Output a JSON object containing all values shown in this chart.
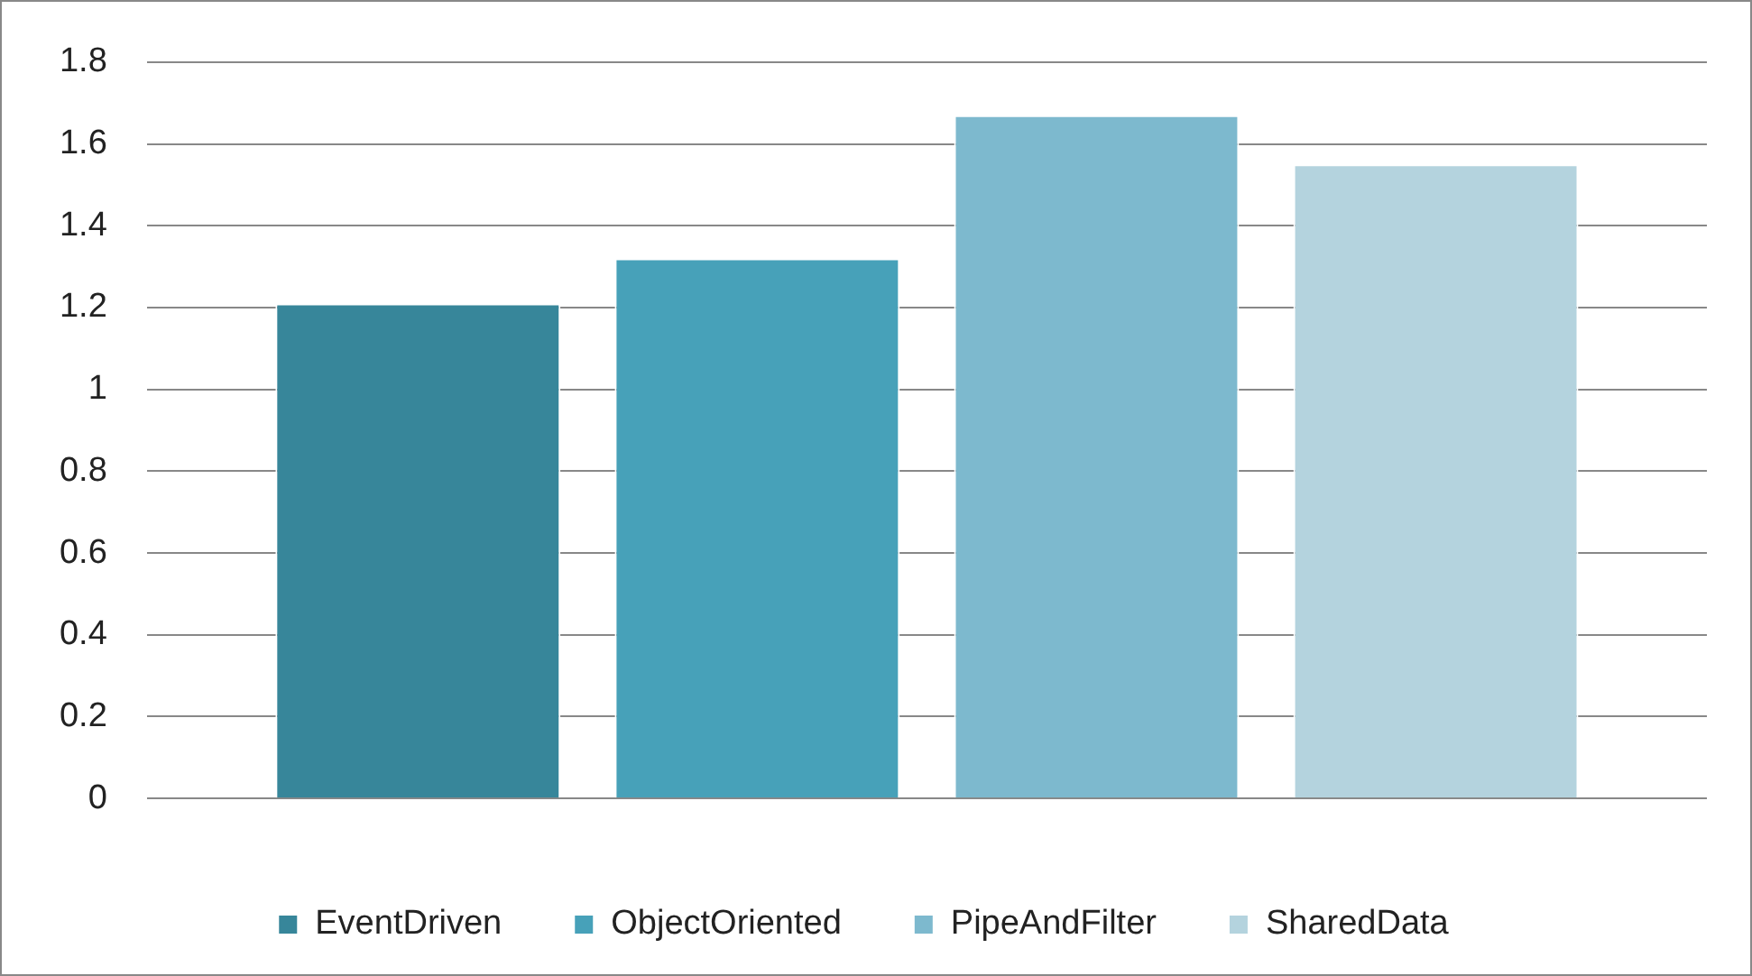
{
  "chart_data": {
    "type": "bar",
    "categories": [
      null
    ],
    "series": [
      {
        "name": "EventDriven",
        "color": "#37869a",
        "values": [
          1.21
        ]
      },
      {
        "name": "ObjectOriented",
        "color": "#47a1b9",
        "values": [
          1.32
        ]
      },
      {
        "name": "PipeAndFilter",
        "color": "#7db9ce",
        "values": [
          1.67
        ]
      },
      {
        "name": "SharedData",
        "color": "#b4d3de",
        "values": [
          1.55
        ]
      }
    ],
    "ylim": [
      0,
      1.8
    ],
    "yticks": [
      0,
      0.2,
      0.4,
      0.6,
      0.8,
      1,
      1.2,
      1.4,
      1.6,
      1.8
    ],
    "grid": "y",
    "legend": "bottom"
  }
}
